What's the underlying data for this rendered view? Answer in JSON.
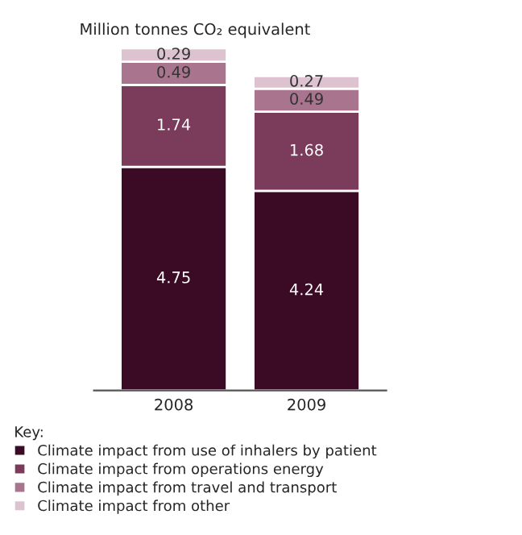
{
  "chart_data": {
    "type": "bar",
    "stacked": true,
    "title": "Million tonnes CO₂ equivalent",
    "categories": [
      "2008",
      "2009"
    ],
    "series": [
      {
        "name": "Climate impact from use of inhalers by patient",
        "color": "#3b0a24",
        "values": [
          4.75,
          4.24
        ]
      },
      {
        "name": "Climate impact from operations energy",
        "color": "#7b3c5c",
        "values": [
          1.74,
          1.68
        ]
      },
      {
        "name": "Climate impact from travel and transport",
        "color": "#a9748e",
        "values": [
          0.49,
          0.49
        ]
      },
      {
        "name": "Climate impact from other",
        "color": "#dcc3cf",
        "values": [
          0.29,
          0.27
        ]
      }
    ],
    "data_labels": true,
    "legend": "bottom",
    "legend_title": "Key:",
    "grid": false,
    "tick_labels": "x"
  }
}
